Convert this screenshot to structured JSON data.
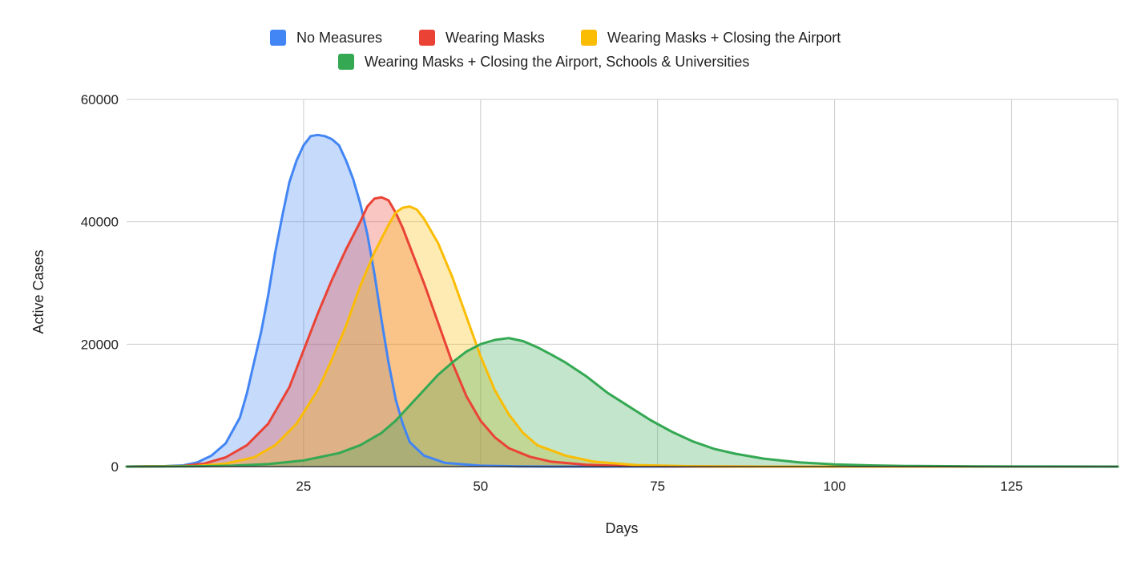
{
  "chart_data": {
    "type": "area",
    "title": "",
    "xlabel": "Days",
    "ylabel": "Active Cases",
    "xlim": [
      0,
      140
    ],
    "ylim": [
      0,
      60000
    ],
    "x_ticks": [
      25,
      50,
      75,
      100,
      125
    ],
    "y_ticks": [
      0,
      20000,
      40000,
      60000
    ],
    "grid": true,
    "legend_position": "top",
    "series": [
      {
        "name": "No Measures",
        "color": "#4285f4",
        "points": [
          [
            0,
            0
          ],
          [
            5,
            50
          ],
          [
            8,
            200
          ],
          [
            10,
            700
          ],
          [
            12,
            1800
          ],
          [
            14,
            3800
          ],
          [
            16,
            8000
          ],
          [
            17,
            12000
          ],
          [
            18,
            17000
          ],
          [
            19,
            22000
          ],
          [
            20,
            28000
          ],
          [
            21,
            35000
          ],
          [
            22,
            41000
          ],
          [
            23,
            46500
          ],
          [
            24,
            50000
          ],
          [
            25,
            52500
          ],
          [
            26,
            54000
          ],
          [
            27,
            54200
          ],
          [
            28,
            54000
          ],
          [
            29,
            53500
          ],
          [
            30,
            52500
          ],
          [
            31,
            50000
          ],
          [
            32,
            47000
          ],
          [
            33,
            43000
          ],
          [
            34,
            38000
          ],
          [
            35,
            31500
          ],
          [
            36,
            24000
          ],
          [
            37,
            17000
          ],
          [
            38,
            11000
          ],
          [
            39,
            7000
          ],
          [
            40,
            4000
          ],
          [
            42,
            1800
          ],
          [
            45,
            600
          ],
          [
            50,
            150
          ],
          [
            55,
            40
          ],
          [
            60,
            0
          ],
          [
            140,
            0
          ]
        ]
      },
      {
        "name": "Wearing Masks",
        "color": "#ea4335",
        "points": [
          [
            0,
            0
          ],
          [
            8,
            100
          ],
          [
            11,
            500
          ],
          [
            14,
            1500
          ],
          [
            17,
            3500
          ],
          [
            20,
            7000
          ],
          [
            23,
            13000
          ],
          [
            25,
            19000
          ],
          [
            27,
            25000
          ],
          [
            29,
            30500
          ],
          [
            31,
            35500
          ],
          [
            33,
            40000
          ],
          [
            34,
            42500
          ],
          [
            35,
            43800
          ],
          [
            36,
            44000
          ],
          [
            37,
            43500
          ],
          [
            38,
            41500
          ],
          [
            39,
            39000
          ],
          [
            40,
            36000
          ],
          [
            42,
            30000
          ],
          [
            44,
            23500
          ],
          [
            46,
            17000
          ],
          [
            48,
            11500
          ],
          [
            50,
            7500
          ],
          [
            52,
            4800
          ],
          [
            54,
            3000
          ],
          [
            57,
            1600
          ],
          [
            60,
            800
          ],
          [
            65,
            300
          ],
          [
            70,
            100
          ],
          [
            80,
            20
          ],
          [
            90,
            0
          ],
          [
            140,
            0
          ]
        ]
      },
      {
        "name": "Wearing Masks + Closing the Airport",
        "color": "#fbbc04",
        "points": [
          [
            0,
            0
          ],
          [
            10,
            100
          ],
          [
            14,
            500
          ],
          [
            18,
            1500
          ],
          [
            21,
            3500
          ],
          [
            24,
            7000
          ],
          [
            27,
            12500
          ],
          [
            29,
            17500
          ],
          [
            31,
            23000
          ],
          [
            33,
            29500
          ],
          [
            35,
            35000
          ],
          [
            37,
            39500
          ],
          [
            38,
            41500
          ],
          [
            39,
            42300
          ],
          [
            40,
            42500
          ],
          [
            41,
            42000
          ],
          [
            42,
            40500
          ],
          [
            44,
            36500
          ],
          [
            46,
            31000
          ],
          [
            48,
            24500
          ],
          [
            50,
            18000
          ],
          [
            52,
            12500
          ],
          [
            54,
            8500
          ],
          [
            56,
            5500
          ],
          [
            58,
            3500
          ],
          [
            62,
            1800
          ],
          [
            66,
            800
          ],
          [
            72,
            250
          ],
          [
            80,
            50
          ],
          [
            90,
            0
          ],
          [
            140,
            0
          ]
        ]
      },
      {
        "name": "Wearing Masks + Closing the Airport, Schools & Universities",
        "color": "#34a853",
        "points": [
          [
            0,
            0
          ],
          [
            10,
            50
          ],
          [
            15,
            150
          ],
          [
            20,
            400
          ],
          [
            25,
            1000
          ],
          [
            30,
            2200
          ],
          [
            33,
            3500
          ],
          [
            36,
            5500
          ],
          [
            38,
            7500
          ],
          [
            40,
            10000
          ],
          [
            42,
            12500
          ],
          [
            44,
            15000
          ],
          [
            46,
            17000
          ],
          [
            48,
            18800
          ],
          [
            50,
            20000
          ],
          [
            52,
            20700
          ],
          [
            54,
            21000
          ],
          [
            56,
            20500
          ],
          [
            58,
            19500
          ],
          [
            60,
            18300
          ],
          [
            62,
            17000
          ],
          [
            65,
            14700
          ],
          [
            68,
            12000
          ],
          [
            71,
            9800
          ],
          [
            74,
            7600
          ],
          [
            77,
            5700
          ],
          [
            80,
            4100
          ],
          [
            83,
            2900
          ],
          [
            86,
            2100
          ],
          [
            90,
            1300
          ],
          [
            95,
            700
          ],
          [
            100,
            350
          ],
          [
            105,
            200
          ],
          [
            110,
            100
          ],
          [
            120,
            40
          ],
          [
            130,
            10
          ],
          [
            140,
            0
          ]
        ]
      }
    ]
  }
}
